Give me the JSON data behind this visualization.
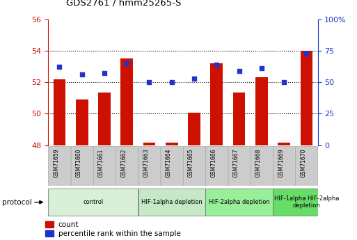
{
  "title": "GDS2761 / hmm25265-S",
  "samples": [
    "GSM71659",
    "GSM71660",
    "GSM71661",
    "GSM71662",
    "GSM71663",
    "GSM71664",
    "GSM71665",
    "GSM71666",
    "GSM71667",
    "GSM71668",
    "GSM71669",
    "GSM71670"
  ],
  "counts": [
    52.2,
    50.9,
    51.35,
    53.5,
    48.15,
    48.15,
    50.05,
    53.2,
    51.35,
    52.3,
    48.15,
    54.0
  ],
  "percentile_ranks": [
    62,
    56,
    57,
    65,
    50,
    50,
    53,
    64,
    59,
    61,
    50,
    73
  ],
  "ylim_left": [
    48,
    56
  ],
  "ylim_right": [
    0,
    100
  ],
  "yticks_left": [
    48,
    50,
    52,
    54,
    56
  ],
  "yticks_right": [
    0,
    25,
    50,
    75,
    100
  ],
  "bar_color": "#cc1100",
  "dot_color": "#2233cc",
  "bar_bottom": 48,
  "groups": [
    {
      "label": "control",
      "start": 0,
      "end": 4,
      "color": "#d8f0d8"
    },
    {
      "label": "HIF-1alpha depletion",
      "start": 4,
      "end": 7,
      "color": "#c5e8c5"
    },
    {
      "label": "HIF-2alpha depletion",
      "start": 7,
      "end": 10,
      "color": "#99ee99"
    },
    {
      "label": "HIF-1alpha HIF-2alpha\ndepletion",
      "start": 10,
      "end": 13,
      "color": "#66dd66"
    }
  ],
  "protocol_label": "protocol",
  "legend_count_label": "count",
  "legend_pct_label": "percentile rank within the sample",
  "bar_color_label": "#cc1100",
  "dot_color_label": "#2233cc",
  "sample_box_color": "#cccccc",
  "sample_box_edge": "#999999"
}
